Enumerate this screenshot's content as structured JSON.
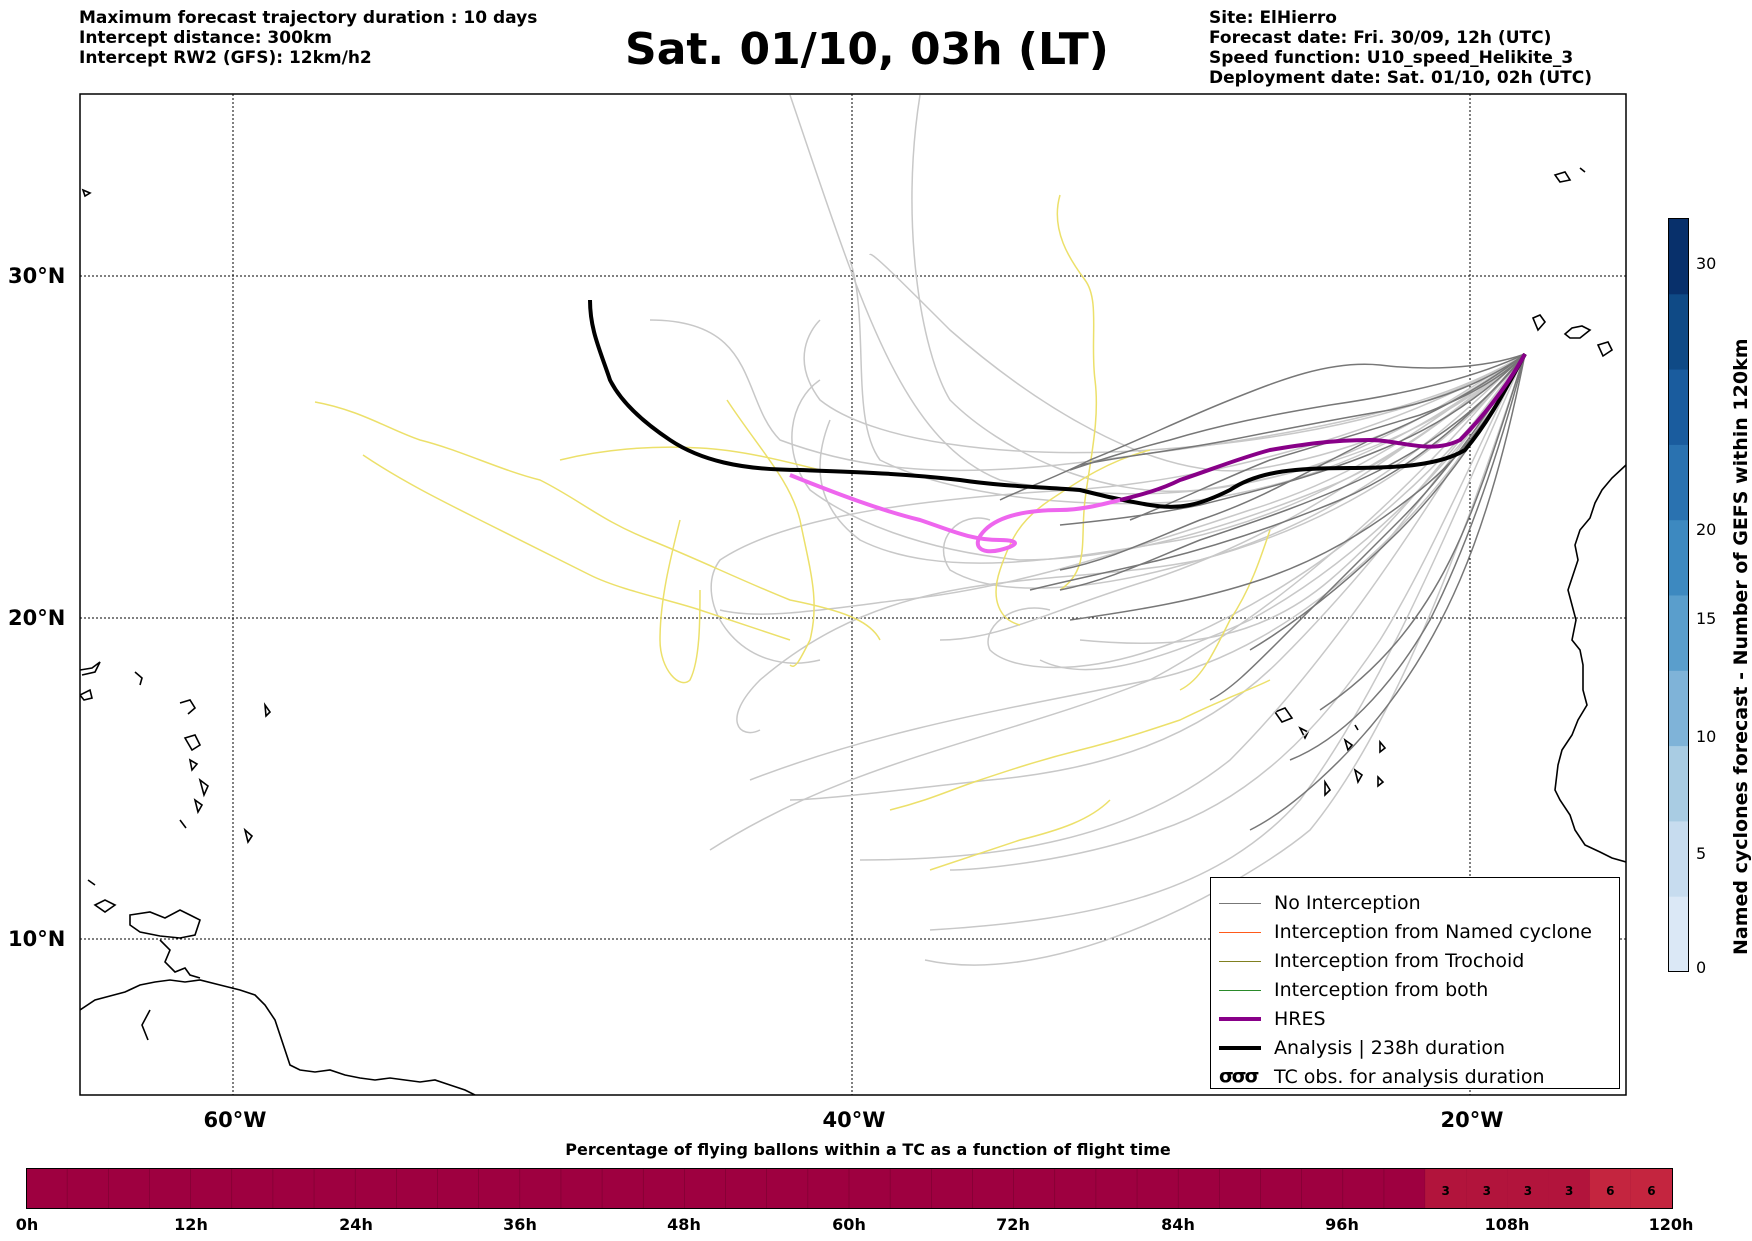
{
  "header_left": [
    "Maximum forecast trajectory duration : 10 days",
    "Intercept distance: 300km",
    "Intercept RW2 (GFS):  12km/h2"
  ],
  "title": "Sat. 01/10, 03h (LT)",
  "header_right": [
    "Site: ElHierro",
    "Forecast date: Fri. 30/09, 12h (UTC)",
    "Speed function: U10_speed_Helikite_3",
    "Deployment date: Sat. 01/10, 02h (UTC)"
  ],
  "map": {
    "lat_labels": [
      "30°N",
      "20°N",
      "10°N"
    ],
    "lon_labels": [
      "60°W",
      "40°W",
      "20°W"
    ],
    "colors": {
      "no_interception": "#777777",
      "gefs_light": "#c8c8c8",
      "yellow": "#ece06a",
      "hres": "#880088",
      "hres_pink": "#ee66ee",
      "analysis": "#000000",
      "named_cyclone": "#ff5a1a",
      "trochoid": "#808020",
      "both": "#2a8a2a"
    }
  },
  "legend": {
    "items": [
      {
        "label": "No Interception",
        "icon": "thin-gray-line"
      },
      {
        "label": "Interception from Named cyclone",
        "icon": "thin-orange-line"
      },
      {
        "label": "Interception from Trochoid",
        "icon": "thin-olive-line"
      },
      {
        "label": "Interception from both",
        "icon": "thin-green-line"
      },
      {
        "label": "HRES",
        "icon": "thick-purple-line"
      },
      {
        "label": "Analysis | 238h duration",
        "icon": "thick-black-line"
      },
      {
        "label": "TC obs. for analysis duration",
        "icon": "hurricane-symbols-icon",
        "symbol": "σσσ"
      }
    ]
  },
  "colorbar": {
    "title": "Named cyclones forecast - Number of GEFS within 120km",
    "ticks": [
      "0",
      "5",
      "10",
      "15",
      "20",
      "30"
    ],
    "colors_bottom_to_top": [
      "#dbe8f6",
      "#c7dcef",
      "#a9cce3",
      "#7fb3d8",
      "#5a9ecc",
      "#3d89c0",
      "#2a72b0",
      "#1a5c9e",
      "#0f4a86",
      "#08306b"
    ]
  },
  "bottom_bar": {
    "title": "Percentage of flying ballons within a TC as a function of flight time",
    "hour_labels": [
      "0h",
      "12h",
      "24h",
      "36h",
      "48h",
      "60h",
      "72h",
      "84h",
      "96h",
      "108h",
      "120h"
    ],
    "percent_labels": [
      "3",
      "3",
      "3",
      "3",
      "6",
      "6"
    ],
    "base_color": "#9e0040",
    "segment_colors": [
      "#b2143c",
      "#b2143c",
      "#b2143c",
      "#b2143c",
      "#c4253f",
      "#c4253f"
    ]
  }
}
